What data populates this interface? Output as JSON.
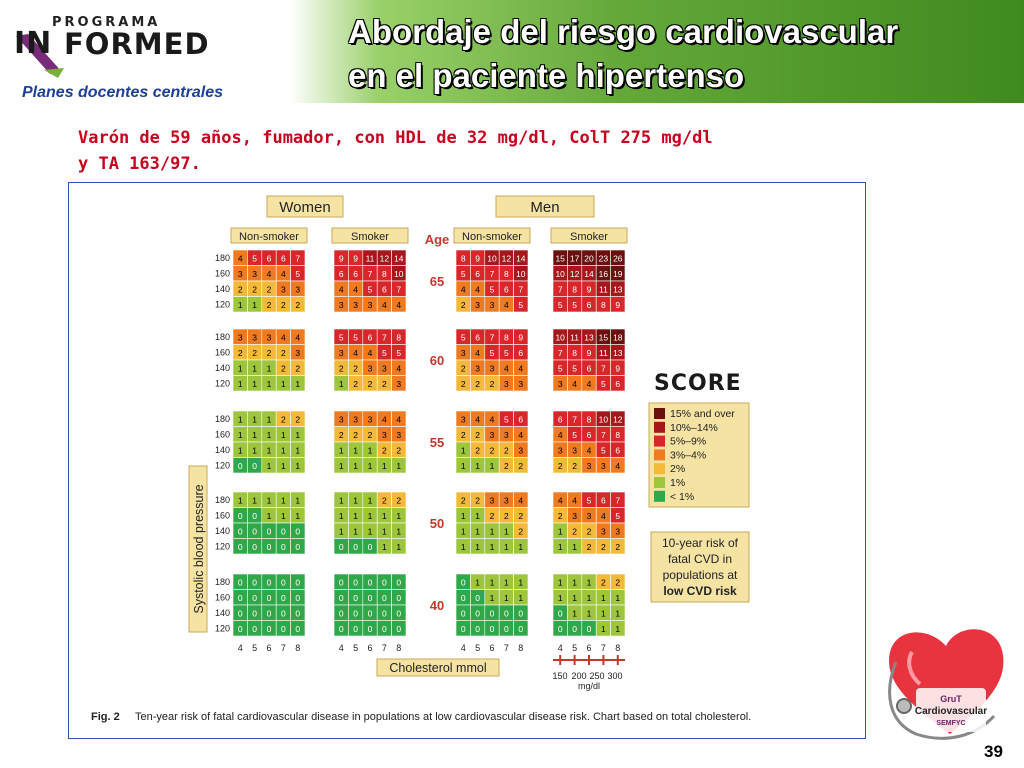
{
  "header": {
    "logo_top": "PROGRAMA",
    "logo_left": "IN",
    "logo_right": "FORMED",
    "subtitle": "Planes docentes centrales",
    "title_line1": "Abordaje del riesgo cardiovascular",
    "title_line2": "en el  paciente hipertenso"
  },
  "case_text_line1": "Varón de 59 años, fumador, con HDL de 32 mg/dl, ColT 275 mg/dl",
  "case_text_line2": "y TA 163/97.",
  "page_number": "39",
  "badge": {
    "line1": "GruT",
    "line2": "Cardiovascular",
    "line3": "SEMFYC"
  },
  "chart_data": {
    "type": "heatmap",
    "groups": [
      "Women",
      "Men"
    ],
    "smoking_labels": [
      "Non-smoker",
      "Smoker"
    ],
    "age_label": "Age",
    "ages": [
      "65",
      "60",
      "55",
      "50",
      "40"
    ],
    "sbp_rows": [
      "180",
      "160",
      "140",
      "120"
    ],
    "cholesterol_cols": [
      "4",
      "5",
      "6",
      "7",
      "8"
    ],
    "ylabel": "Systolic blood pressure",
    "xlabel": "Cholesterol  mmol",
    "mgdl_ticks": [
      "150",
      "200",
      "250",
      "300"
    ],
    "mgdl_unit": "mg/dl",
    "score_title": "SCORE",
    "legend": [
      "15% and over",
      "10%–14%",
      "5%–9%",
      "3%–4%",
      "2%",
      "1%",
      "< 1%"
    ],
    "legend_colors": [
      "#6b0f0f",
      "#a6171c",
      "#d9262b",
      "#f07a1f",
      "#f5b93a",
      "#9dc63c",
      "#2fa84a"
    ],
    "note": [
      "10-year risk of",
      "fatal CVD in",
      "populations at",
      "low CVD risk"
    ],
    "caption_label": "Fig. 2",
    "caption": "Ten-year risk of fatal cardiovascular disease in populations at low cardiovascular disease risk. Chart based on total cholesterol.",
    "values": {
      "women_nonsmoker": [
        [
          [
            4,
            5,
            6,
            6,
            7
          ],
          [
            3,
            3,
            4,
            4,
            5
          ],
          [
            2,
            2,
            2,
            3,
            3
          ],
          [
            1,
            1,
            2,
            2,
            2
          ]
        ],
        [
          [
            3,
            3,
            3,
            4,
            4
          ],
          [
            2,
            2,
            2,
            2,
            3
          ],
          [
            1,
            1,
            1,
            2,
            2
          ],
          [
            1,
            1,
            1,
            1,
            1
          ]
        ],
        [
          [
            1,
            1,
            1,
            2,
            2
          ],
          [
            1,
            1,
            1,
            1,
            1
          ],
          [
            1,
            1,
            1,
            1,
            1
          ],
          [
            0,
            0,
            1,
            1,
            1
          ]
        ],
        [
          [
            1,
            1,
            1,
            1,
            1
          ],
          [
            0,
            0,
            1,
            1,
            1
          ],
          [
            0,
            0,
            0,
            0,
            0
          ],
          [
            0,
            0,
            0,
            0,
            0
          ]
        ],
        [
          [
            0,
            0,
            0,
            0,
            0
          ],
          [
            0,
            0,
            0,
            0,
            0
          ],
          [
            0,
            0,
            0,
            0,
            0
          ],
          [
            0,
            0,
            0,
            0,
            0
          ]
        ]
      ],
      "women_smoker": [
        [
          [
            9,
            9,
            11,
            12,
            14
          ],
          [
            6,
            6,
            7,
            8,
            10
          ],
          [
            4,
            4,
            5,
            6,
            7
          ],
          [
            3,
            3,
            3,
            4,
            4
          ]
        ],
        [
          [
            5,
            5,
            6,
            7,
            8
          ],
          [
            3,
            4,
            4,
            5,
            5
          ],
          [
            2,
            2,
            3,
            3,
            4
          ],
          [
            1,
            2,
            2,
            2,
            3
          ]
        ],
        [
          [
            3,
            3,
            3,
            4,
            4
          ],
          [
            2,
            2,
            2,
            3,
            3
          ],
          [
            1,
            1,
            1,
            2,
            2
          ],
          [
            1,
            1,
            1,
            1,
            1
          ]
        ],
        [
          [
            1,
            1,
            1,
            2,
            2
          ],
          [
            1,
            1,
            1,
            1,
            1
          ],
          [
            1,
            1,
            1,
            1,
            1
          ],
          [
            0,
            0,
            0,
            1,
            1
          ]
        ],
        [
          [
            0,
            0,
            0,
            0,
            0
          ],
          [
            0,
            0,
            0,
            0,
            0
          ],
          [
            0,
            0,
            0,
            0,
            0
          ],
          [
            0,
            0,
            0,
            0,
            0
          ]
        ]
      ],
      "men_nonsmoker": [
        [
          [
            8,
            9,
            10,
            12,
            14
          ],
          [
            5,
            6,
            7,
            8,
            10
          ],
          [
            4,
            4,
            5,
            6,
            7
          ],
          [
            2,
            3,
            3,
            4,
            5
          ]
        ],
        [
          [
            5,
            6,
            7,
            8,
            9
          ],
          [
            3,
            4,
            5,
            5,
            6
          ],
          [
            2,
            3,
            3,
            4,
            4
          ],
          [
            2,
            2,
            2,
            3,
            3
          ]
        ],
        [
          [
            3,
            4,
            4,
            5,
            6
          ],
          [
            2,
            2,
            3,
            3,
            4
          ],
          [
            1,
            2,
            2,
            2,
            3
          ],
          [
            1,
            1,
            1,
            2,
            2
          ]
        ],
        [
          [
            2,
            2,
            3,
            3,
            4
          ],
          [
            1,
            1,
            2,
            2,
            2
          ],
          [
            1,
            1,
            1,
            1,
            2
          ],
          [
            1,
            1,
            1,
            1,
            1
          ]
        ],
        [
          [
            0,
            1,
            1,
            1,
            1
          ],
          [
            0,
            0,
            1,
            1,
            1
          ],
          [
            0,
            0,
            0,
            0,
            0
          ],
          [
            0,
            0,
            0,
            0,
            0
          ]
        ]
      ],
      "men_smoker": [
        [
          [
            15,
            17,
            20,
            23,
            26
          ],
          [
            10,
            12,
            14,
            16,
            19
          ],
          [
            7,
            8,
            9,
            11,
            13
          ],
          [
            5,
            5,
            6,
            8,
            9
          ]
        ],
        [
          [
            10,
            11,
            13,
            15,
            18
          ],
          [
            7,
            8,
            9,
            11,
            13
          ],
          [
            5,
            5,
            6,
            7,
            9
          ],
          [
            3,
            4,
            4,
            5,
            6
          ]
        ],
        [
          [
            6,
            7,
            8,
            10,
            12
          ],
          [
            4,
            5,
            6,
            7,
            8
          ],
          [
            3,
            3,
            4,
            5,
            6
          ],
          [
            2,
            2,
            3,
            3,
            4
          ]
        ],
        [
          [
            4,
            4,
            5,
            6,
            7
          ],
          [
            2,
            3,
            3,
            4,
            5
          ],
          [
            1,
            2,
            2,
            3,
            3
          ],
          [
            1,
            1,
            2,
            2,
            2
          ]
        ],
        [
          [
            1,
            1,
            1,
            2,
            2
          ],
          [
            1,
            1,
            1,
            1,
            1
          ],
          [
            0,
            1,
            1,
            1,
            1
          ],
          [
            0,
            0,
            0,
            1,
            1
          ]
        ]
      ]
    }
  }
}
